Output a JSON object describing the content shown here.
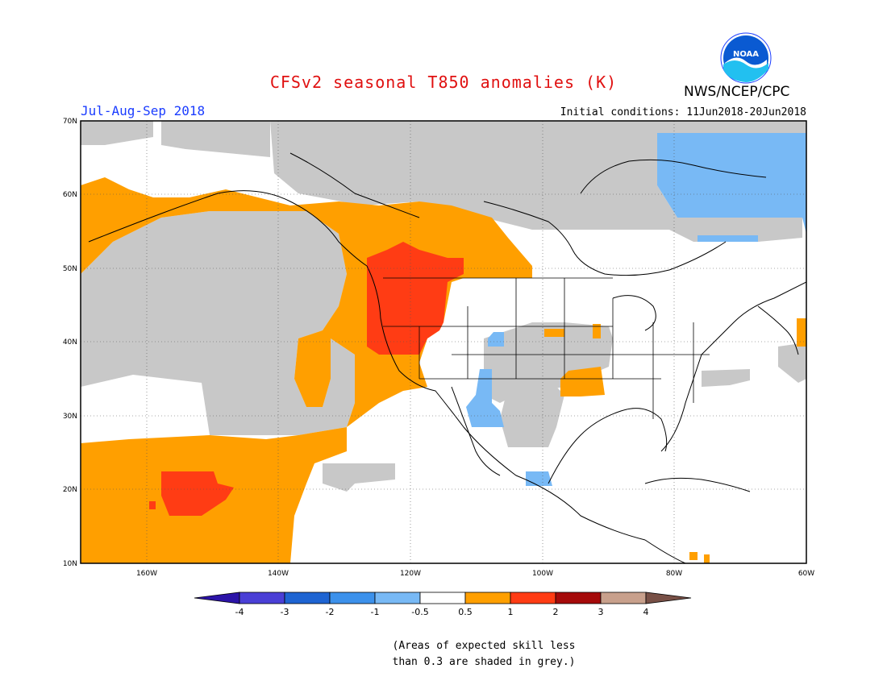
{
  "title": "CFSv2 seasonal T850 anomalies (K)",
  "season": "Jul-Aug-Sep 2018",
  "agency": "NWS/NCEP/CPC",
  "initial_conditions": "Initial conditions: 11Jun2018-20Jun2018",
  "logo": {
    "text": "NOAA",
    "icon": "noaa-logo-icon"
  },
  "footnote": [
    "(Areas of expected skill less",
    "than 0.3 are shaded in grey.)"
  ],
  "map": {
    "lat_labels": [
      "70N",
      "60N",
      "50N",
      "40N",
      "30N",
      "20N",
      "10N"
    ],
    "lon_labels": [
      "160W",
      "140W",
      "120W",
      "100W",
      "80W",
      "60W"
    ],
    "lat_range": [
      10,
      70
    ],
    "lon_range": [
      -170,
      -60
    ]
  },
  "colorbar": {
    "labels": [
      "-4",
      "-3",
      "-2",
      "-1",
      "-0.5",
      "0.5",
      "1",
      "2",
      "3",
      "4"
    ],
    "colors": [
      "#2c14a8",
      "#4a3fd6",
      "#1e64d2",
      "#3c91eb",
      "#78b9f5",
      "#ffffff",
      "#ff9f00",
      "#ff3c14",
      "#a50a0a",
      "#c8a08c",
      "#785046"
    ]
  },
  "colors": {
    "grey_low_skill": "#c8c8c8",
    "warm_0_5_1": "#ff9f00",
    "warm_1_2": "#ff3c14",
    "cool_0_5_1": "#78b9f5",
    "title_red": "#e01010",
    "season_blue": "#1a3cff"
  }
}
